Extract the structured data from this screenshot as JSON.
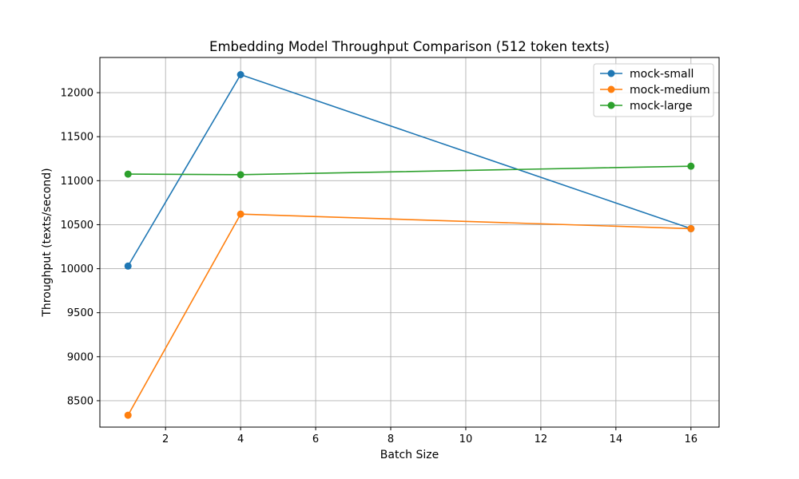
{
  "chart_data": {
    "type": "line",
    "title": "Embedding Model Throughput Comparison (512 token texts)",
    "xlabel": "Batch Size",
    "ylabel": "Throughput (texts/second)",
    "xlim": [
      0.25,
      16.75
    ],
    "ylim": [
      8200,
      12400
    ],
    "xticks": [
      2,
      4,
      6,
      8,
      10,
      12,
      14,
      16
    ],
    "yticks": [
      8500,
      9000,
      9500,
      10000,
      10500,
      11000,
      11500,
      12000
    ],
    "grid": true,
    "legend_position": "upper right",
    "x": [
      1,
      4,
      16
    ],
    "series": [
      {
        "name": "mock-small",
        "color": "#1f77b4",
        "marker": "circle",
        "values": [
          10030,
          12205,
          10455
        ]
      },
      {
        "name": "mock-medium",
        "color": "#ff7f0e",
        "marker": "circle",
        "values": [
          8335,
          10620,
          10455
        ]
      },
      {
        "name": "mock-large",
        "color": "#2ca02c",
        "marker": "circle",
        "values": [
          11075,
          11068,
          11165
        ]
      }
    ]
  }
}
